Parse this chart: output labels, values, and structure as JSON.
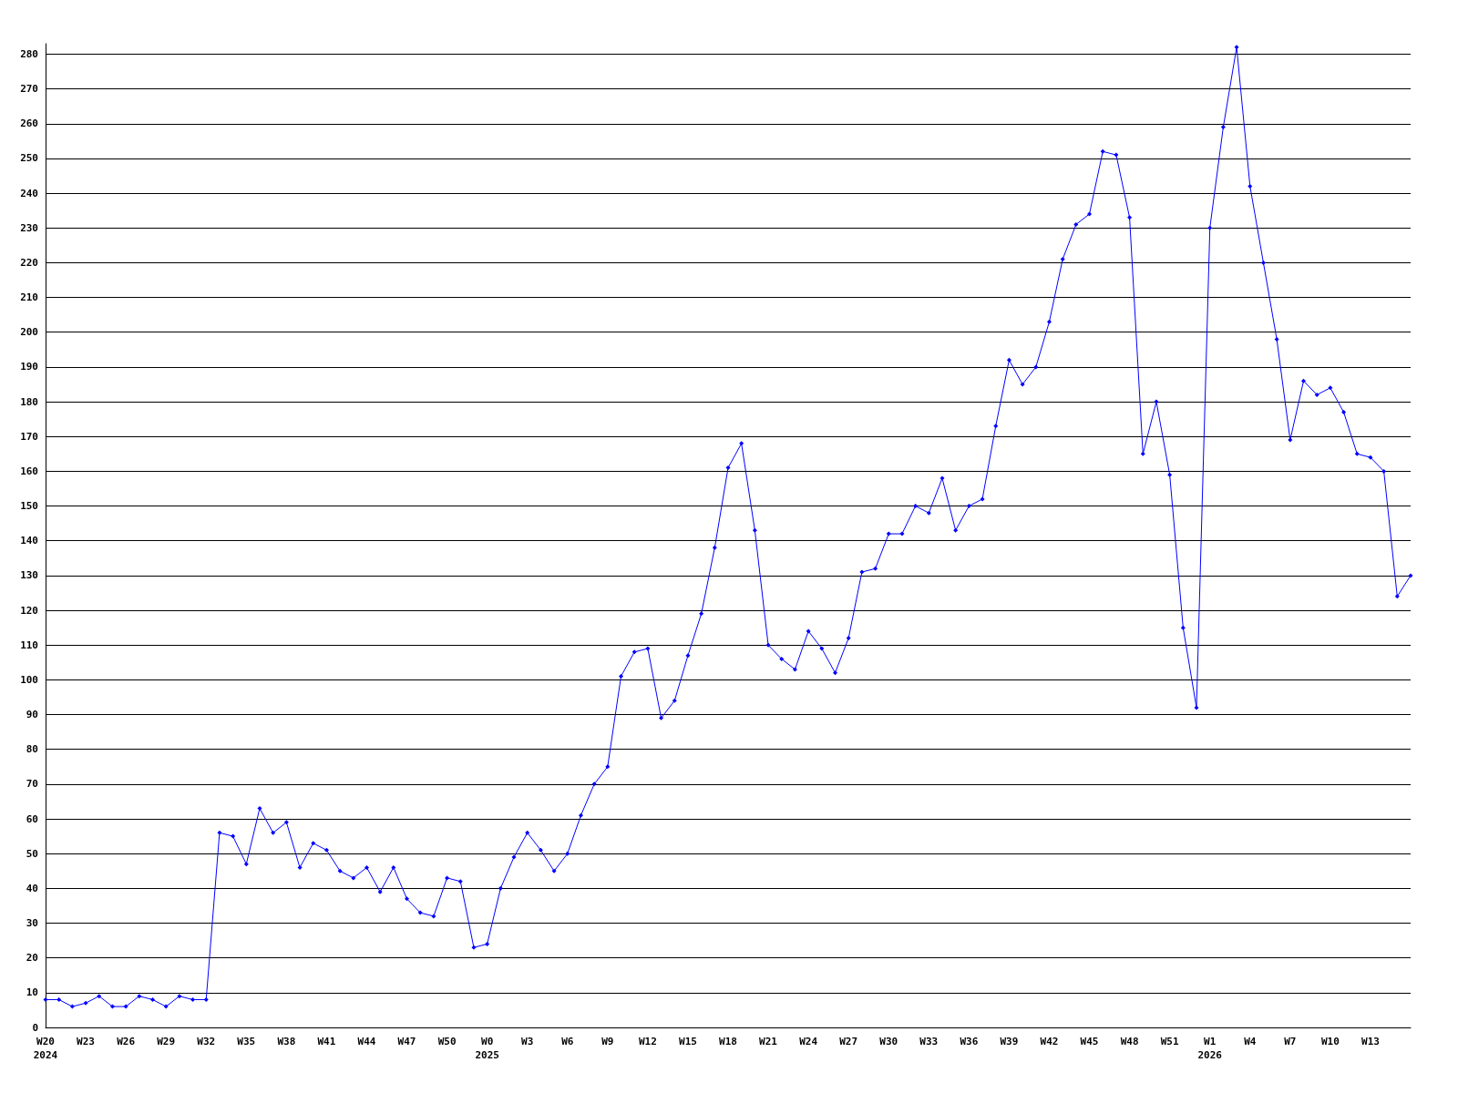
{
  "chart_data": {
    "type": "line",
    "categories": [
      "W20\n2024",
      null,
      null,
      "W23",
      null,
      null,
      "W26",
      null,
      null,
      "W29",
      null,
      null,
      "W32",
      null,
      null,
      "W35",
      null,
      null,
      "W38",
      null,
      null,
      "W41",
      null,
      null,
      "W44",
      null,
      null,
      "W47",
      null,
      null,
      "W50",
      null,
      null,
      "W0\n2025",
      null,
      null,
      "W3",
      null,
      null,
      "W6",
      null,
      null,
      "W9",
      null,
      null,
      "W12",
      null,
      null,
      "W15",
      null,
      null,
      "W18",
      null,
      null,
      "W21",
      null,
      null,
      "W24",
      null,
      null,
      "W27",
      null,
      null,
      "W30",
      null,
      null,
      "W33",
      null,
      null,
      "W36",
      null,
      null,
      "W39",
      null,
      null,
      "W42",
      null,
      null,
      "W45",
      null,
      null,
      "W48",
      null,
      null,
      "W51",
      null,
      null,
      "W1\n2026",
      null,
      null,
      "W4",
      null,
      null,
      "W7",
      null,
      null,
      "W10",
      null,
      null,
      "W13",
      null,
      null,
      null
    ],
    "series": [
      {
        "color": "#0000ff",
        "values": [
          8,
          8,
          6,
          7,
          9,
          6,
          6,
          9,
          8,
          6,
          9,
          8,
          8,
          56,
          55,
          47,
          63,
          56,
          59,
          46,
          53,
          51,
          45,
          43,
          46,
          39,
          46,
          37,
          33,
          32,
          43,
          42,
          23,
          24,
          40,
          49,
          56,
          51,
          45,
          50,
          61,
          70,
          75,
          101,
          108,
          109,
          89,
          94,
          107,
          119,
          138,
          161,
          168,
          143,
          110,
          106,
          103,
          114,
          109,
          102,
          112,
          131,
          132,
          142,
          142,
          150,
          148,
          158,
          143,
          150,
          152,
          173,
          192,
          185,
          190,
          203,
          221,
          231,
          234,
          252,
          251,
          233,
          165,
          180,
          159,
          115,
          92,
          230,
          259,
          282,
          242,
          220,
          198,
          169,
          186,
          182,
          184,
          177,
          165,
          164,
          160,
          124,
          130
        ]
      }
    ],
    "ylim": [
      0,
      283
    ],
    "yticks": [
      0,
      10,
      20,
      30,
      40,
      50,
      60,
      70,
      80,
      90,
      100,
      110,
      120,
      130,
      140,
      150,
      160,
      170,
      180,
      190,
      200,
      210,
      220,
      230,
      240,
      250,
      260,
      270,
      280
    ],
    "grid": "y",
    "marker": "diamond",
    "line_style": "solid"
  }
}
